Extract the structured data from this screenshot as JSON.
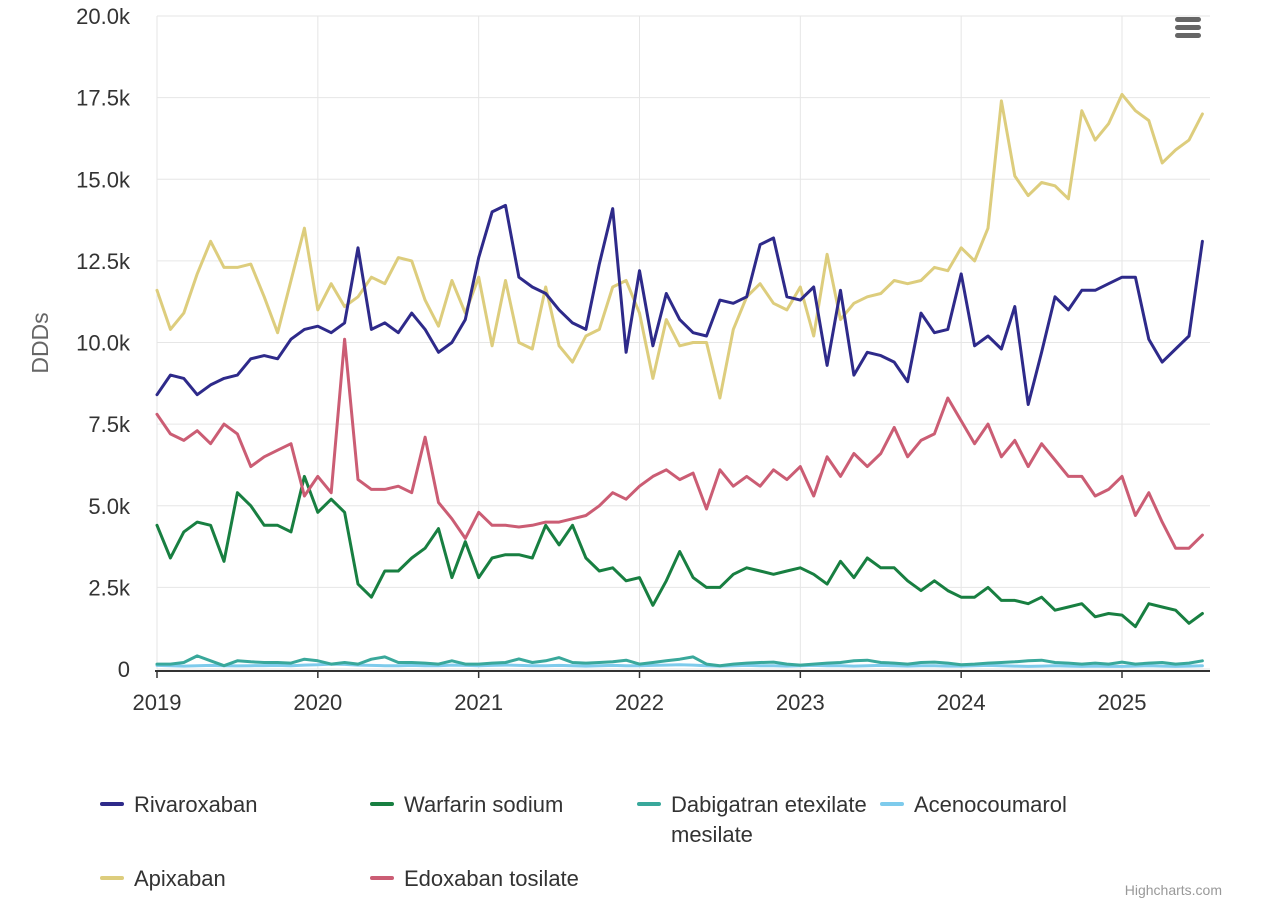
{
  "chart_data": {
    "type": "line",
    "title": "",
    "xlabel": "",
    "ylabel": "DDDs",
    "x_start": "2019-01",
    "x_end": "2025-07",
    "points_per_series": 79,
    "x_tick_labels": [
      "2019",
      "2020",
      "2021",
      "2022",
      "2023",
      "2024",
      "2025"
    ],
    "x_tick_month_index": [
      0,
      12,
      24,
      36,
      48,
      60,
      72
    ],
    "y_tick_labels": [
      "0",
      "2.5k",
      "5.0k",
      "7.5k",
      "10.0k",
      "12.5k",
      "15.0k",
      "17.5k",
      "20.0k"
    ],
    "ylim": [
      0,
      20000
    ],
    "grid": true,
    "legend_position": "bottom",
    "series": [
      {
        "name": "Rivaroxaban",
        "color": "#2e2a8a",
        "values": [
          8400,
          9000,
          8900,
          8400,
          8700,
          8900,
          9000,
          9500,
          9600,
          9500,
          10100,
          10400,
          10500,
          10300,
          10600,
          12900,
          10400,
          10600,
          10300,
          10900,
          10400,
          9700,
          10000,
          10700,
          12600,
          14000,
          14200,
          12000,
          11700,
          11500,
          11000,
          10600,
          10400,
          12400,
          14100,
          9700,
          12200,
          9900,
          11500,
          10700,
          10300,
          10200,
          11300,
          11200,
          11400,
          13000,
          13200,
          11400,
          11300,
          11700,
          9300,
          11600,
          9000,
          9700,
          9600,
          9400,
          8800,
          10900,
          10300,
          10400,
          12100,
          9900,
          10200,
          9800,
          11100,
          8100,
          9700,
          11400,
          11000,
          11600,
          11600,
          11800,
          12000,
          12000,
          10100,
          9400,
          9800,
          10200,
          13100
        ]
      },
      {
        "name": "Apixaban",
        "color": "#ddcd7d",
        "values": [
          11600,
          10400,
          10900,
          12100,
          13100,
          12300,
          12300,
          12400,
          11400,
          10300,
          11900,
          13500,
          11000,
          11800,
          11100,
          11400,
          12000,
          11800,
          12600,
          12500,
          11300,
          10500,
          11900,
          10900,
          12000,
          9900,
          11900,
          10000,
          9800,
          11700,
          9900,
          9400,
          10200,
          10400,
          11700,
          11900,
          10900,
          8900,
          10700,
          9900,
          10000,
          10000,
          8300,
          10400,
          11400,
          11800,
          11200,
          11000,
          11700,
          10200,
          12700,
          10700,
          11200,
          11400,
          11500,
          11900,
          11800,
          11900,
          12300,
          12200,
          12900,
          12500,
          13500,
          17400,
          15100,
          14500,
          14900,
          14800,
          14400,
          17100,
          16200,
          16700,
          17600,
          17100,
          16800,
          15500,
          15900,
          16200,
          17000
        ]
      },
      {
        "name": "Warfarin sodium",
        "color": "#187f41",
        "values": [
          4400,
          3400,
          4200,
          4500,
          4400,
          3300,
          5400,
          5000,
          4400,
          4400,
          4200,
          5900,
          4800,
          5200,
          4800,
          2600,
          2200,
          3000,
          3000,
          3400,
          3700,
          4300,
          2800,
          3900,
          2800,
          3400,
          3500,
          3500,
          3400,
          4400,
          3800,
          4400,
          3400,
          3000,
          3100,
          2700,
          2800,
          1950,
          2700,
          3600,
          2800,
          2500,
          2500,
          2900,
          3100,
          3000,
          2900,
          3000,
          3100,
          2900,
          2600,
          3300,
          2800,
          3400,
          3100,
          3100,
          2700,
          2400,
          2700,
          2400,
          2200,
          2200,
          2500,
          2100,
          2100,
          2000,
          2200,
          1800,
          1900,
          2000,
          1600,
          1700,
          1650,
          1300,
          2000,
          1900,
          1800,
          1400,
          1700
        ]
      },
      {
        "name": "Edoxaban tosilate",
        "color": "#cb5d74",
        "values": [
          7800,
          7200,
          7000,
          7300,
          6900,
          7500,
          7200,
          6200,
          6500,
          6700,
          6900,
          5300,
          5900,
          5400,
          10100,
          5800,
          5500,
          5500,
          5600,
          5400,
          7100,
          5100,
          4600,
          4000,
          4800,
          4400,
          4400,
          4350,
          4400,
          4500,
          4500,
          4600,
          4700,
          5000,
          5400,
          5200,
          5600,
          5900,
          6100,
          5800,
          6000,
          4900,
          6100,
          5600,
          5900,
          5600,
          6100,
          5800,
          6200,
          5300,
          6500,
          5900,
          6600,
          6200,
          6600,
          7400,
          6500,
          7000,
          7200,
          8300,
          7600,
          6900,
          7500,
          6500,
          7000,
          6200,
          6900,
          6400,
          5900,
          5900,
          5300,
          5500,
          5900,
          4700,
          5400,
          4500,
          3700,
          3700,
          4100
        ]
      },
      {
        "name": "Dabigatran etexilate mesilate",
        "color": "#39a89b",
        "values": [
          150,
          150,
          200,
          400,
          250,
          100,
          250,
          220,
          200,
          200,
          180,
          300,
          250,
          150,
          200,
          150,
          300,
          370,
          200,
          200,
          180,
          150,
          250,
          150,
          150,
          180,
          200,
          310,
          200,
          250,
          350,
          200,
          180,
          200,
          220,
          270,
          150,
          200,
          250,
          300,
          370,
          150,
          100,
          150,
          180,
          200,
          210,
          150,
          120,
          150,
          180,
          200,
          250,
          270,
          200,
          180,
          150,
          200,
          210,
          180,
          130,
          150,
          180,
          200,
          220,
          250,
          270,
          200,
          180,
          150,
          180,
          150,
          210,
          150,
          180,
          200,
          150,
          180,
          250
        ]
      },
      {
        "name": "Acenocoumarol",
        "color": "#7ecbec",
        "values": [
          110,
          100,
          90,
          100,
          110,
          100,
          95,
          100,
          105,
          110,
          100,
          120,
          130,
          150,
          140,
          120,
          110,
          100,
          100,
          110,
          100,
          100,
          120,
          110,
          100,
          110,
          120,
          110,
          100,
          100,
          110,
          100,
          90,
          100,
          110,
          100,
          100,
          110,
          120,
          130,
          120,
          100,
          90,
          100,
          110,
          100,
          100,
          90,
          100,
          110,
          100,
          100,
          90,
          100,
          110,
          100,
          90,
          100,
          100,
          90,
          90,
          100,
          110,
          100,
          90,
          80,
          90,
          100,
          90,
          80,
          90,
          80,
          80,
          90,
          100,
          90,
          80,
          90,
          100
        ]
      }
    ]
  },
  "legend": {
    "items": [
      {
        "label": "Rivaroxaban",
        "color": "#2e2a8a"
      },
      {
        "label": "Warfarin sodium",
        "color": "#187f41"
      },
      {
        "label": "Dabigatran etexilate mesilate",
        "color": "#39a89b"
      },
      {
        "label": "Acenocoumarol",
        "color": "#7ecbec"
      },
      {
        "label": "Apixaban",
        "color": "#ddcd7d"
      },
      {
        "label": "Edoxaban tosilate",
        "color": "#cb5d74"
      }
    ]
  },
  "context_menu": {
    "icon": "hamburger"
  },
  "credits": {
    "label": "Highcharts.com"
  },
  "colors": {
    "grid": "#e6e6e6",
    "axis_line": "#333333",
    "axis_label": "#333333",
    "axis_title": "#666666",
    "credits_text": "#999999",
    "menu_icon": "#666666",
    "background": "#ffffff"
  }
}
